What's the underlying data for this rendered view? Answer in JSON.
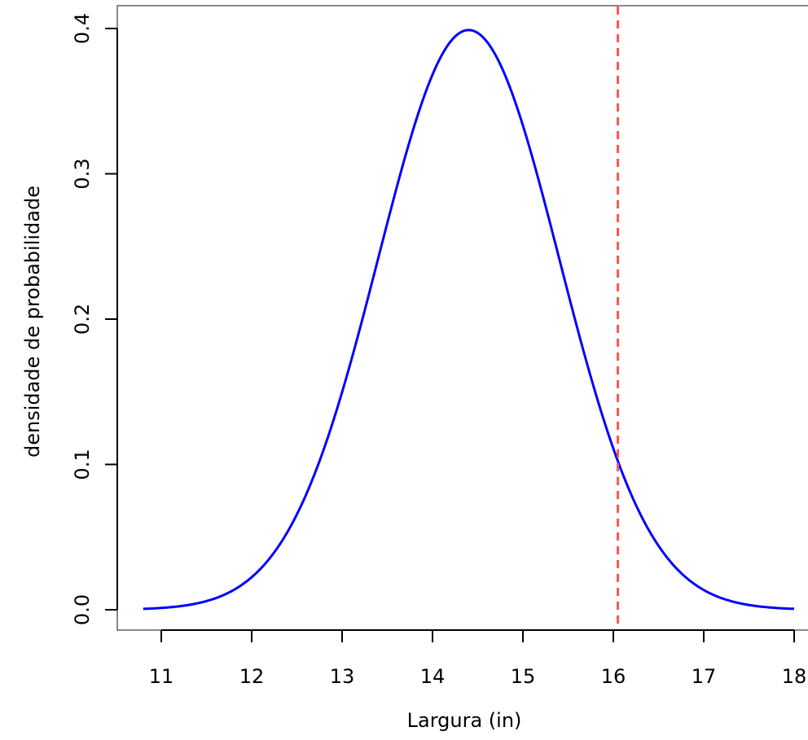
{
  "chart_data": {
    "type": "line",
    "title": "",
    "xlabel": "Largura (in)",
    "ylabel": "densidade de probabilidade",
    "xlim": [
      10.5,
      18.05
    ],
    "ylim": [
      -0.015,
      0.416
    ],
    "x_ticks": [
      "11",
      "12",
      "13",
      "14",
      "15",
      "16",
      "17",
      "18"
    ],
    "y_ticks": [
      "0.0",
      "0.1",
      "0.2",
      "0.3",
      "0.4"
    ],
    "grid": false,
    "series": [
      {
        "color": "#0000ff",
        "distribution": "normal",
        "mean": 14.4,
        "sd": 1.0,
        "x_range": [
          10.8,
          18.0
        ]
      }
    ],
    "reference_line": {
      "orientation": "vertical",
      "x": 16.05,
      "color": "#ff5555",
      "style": "dashed"
    }
  }
}
